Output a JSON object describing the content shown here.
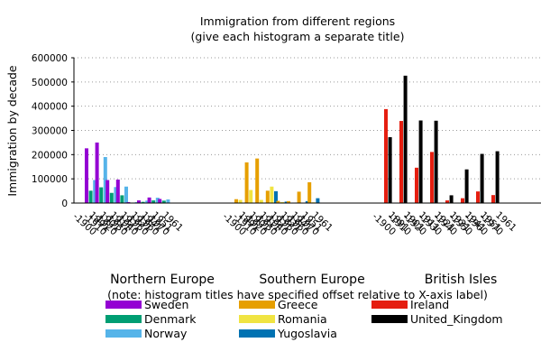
{
  "chart_data": {
    "type": "bar",
    "title": "Immigration from different regions",
    "subtitle": "(give each histogram a separate title)",
    "ylabel": "Immigration by decade",
    "xlabel": "",
    "ylim": [
      0,
      600000
    ],
    "yticks": [
      "0",
      "100000",
      "200000",
      "300000",
      "400000",
      "500000",
      "600000"
    ],
    "grid": "horizontal dotted",
    "categories": [
      "1891-1900",
      "1901-1910",
      "1911-1920",
      "1921-1930",
      "1931-1940",
      "1941-1950",
      "1951-1960",
      "1961-1970"
    ],
    "note": "(note: histogram titles have specified offset relative to X-axis label)",
    "groups": [
      {
        "title": "Northern Europe",
        "series": [
          {
            "name": "Sweden",
            "color": "#9400d3",
            "values": [
              226000,
              250000,
              95000,
              97000,
              4000,
              11000,
              23000,
              17000
            ]
          },
          {
            "name": "Denmark",
            "color": "#009e73",
            "values": [
              51000,
              65000,
              42000,
              32000,
              2000,
              5000,
              11000,
              10000
            ]
          },
          {
            "name": "Norway",
            "color": "#56b4e9",
            "values": [
              95000,
              190000,
              66000,
              68000,
              4000,
              10000,
              22000,
              15000
            ]
          }
        ]
      },
      {
        "title": "Southern Europe",
        "series": [
          {
            "name": "Greece",
            "color": "#e69f00",
            "values": [
              16000,
              168000,
              184000,
              51000,
              9000,
              8000,
              47000,
              86000
            ]
          },
          {
            "name": "Romania",
            "color": "#f0e442",
            "values": [
              13000,
              54000,
              13000,
              68000,
              4000,
              1000,
              1000,
              3000
            ]
          },
          {
            "name": "Yugoslavia",
            "color": "#0072b2",
            "values": [
              0,
              0,
              1000,
              49000,
              6000,
              2000,
              8000,
              20000
            ]
          }
        ]
      },
      {
        "title": "British Isles",
        "series": [
          {
            "name": "Ireland",
            "color": "#e51e10",
            "values": [
              388000,
              339000,
              146000,
              211000,
              11000,
              20000,
              48000,
              33000
            ]
          },
          {
            "name": "United_Kingdom",
            "color": "#000000",
            "values": [
              272000,
              526000,
              341000,
              340000,
              32000,
              139000,
              203000,
              214000
            ]
          }
        ]
      }
    ]
  }
}
